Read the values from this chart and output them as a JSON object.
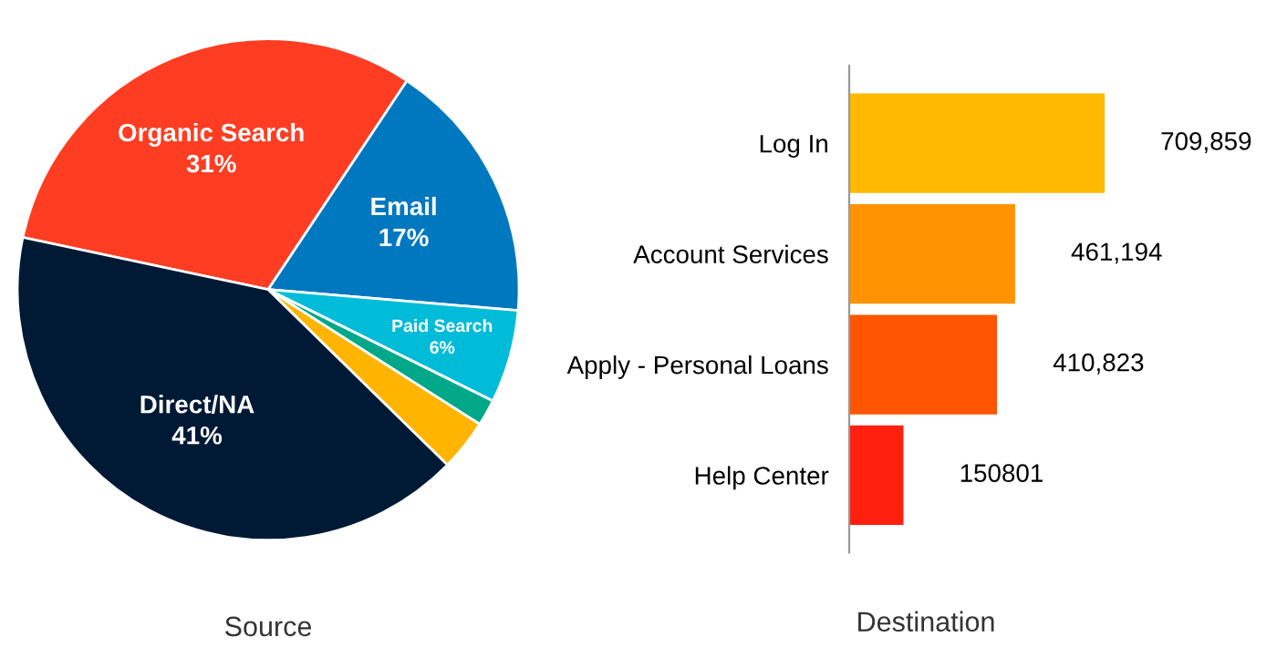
{
  "chart_data": [
    {
      "type": "pie",
      "xlabel": "Source",
      "categories": [
        "Organic Search",
        "Email",
        "Paid Search",
        null,
        null,
        "Direct/NA"
      ],
      "values": [
        31,
        17,
        6,
        1.7,
        3.3,
        41
      ],
      "value_labels": [
        "31%",
        "17%",
        "6%",
        null,
        null,
        "41%"
      ],
      "colors": [
        "#ff3d22",
        "#0078c0",
        "#00bcd9",
        "#00a88a",
        "#ffb400",
        "#001a35"
      ]
    },
    {
      "type": "bar",
      "orientation": "horizontal",
      "xlabel": "Destination",
      "categories": [
        "Log In",
        "Account Services",
        "Apply - Personal Loans",
        "Help Center"
      ],
      "values": [
        709859,
        461194,
        410823,
        150801
      ],
      "value_labels": [
        "709,859",
        "461,194",
        "410,823",
        "150801"
      ],
      "colors": [
        "#ffb900",
        "#ff9400",
        "#ff5500",
        "#ff2010"
      ]
    }
  ]
}
